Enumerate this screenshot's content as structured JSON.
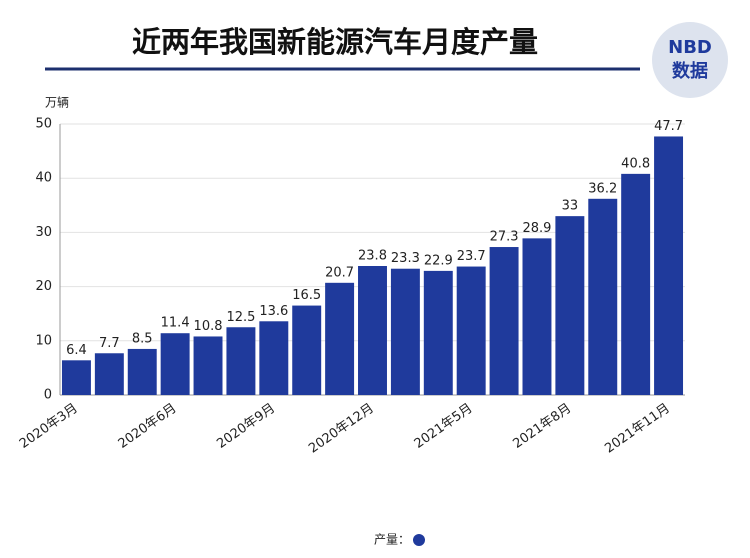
{
  "logo": {
    "top": "NBD",
    "bottom": "数据"
  },
  "chart_data": {
    "type": "bar",
    "title": "近两年我国新能源汽车月度产量",
    "y_label": "万辆",
    "categories": [
      "2020年3月",
      null,
      null,
      "2020年6月",
      null,
      null,
      "2020年9月",
      null,
      null,
      "2020年12月",
      null,
      null,
      "2021年5月",
      null,
      null,
      "2021年8月",
      null,
      null,
      "2021年11月"
    ],
    "series": [
      {
        "name": "产量：",
        "color": "#1f3a9c",
        "values": [
          6.4,
          7.7,
          8.5,
          11.4,
          10.8,
          12.5,
          13.6,
          16.5,
          20.7,
          23.8,
          23.3,
          22.9,
          23.7,
          27.3,
          28.9,
          33,
          36.2,
          40.8,
          47.7
        ]
      }
    ],
    "ylim": [
      0,
      50
    ],
    "yticks": [
      0,
      10,
      20,
      30,
      40,
      50
    ],
    "grid": true
  }
}
